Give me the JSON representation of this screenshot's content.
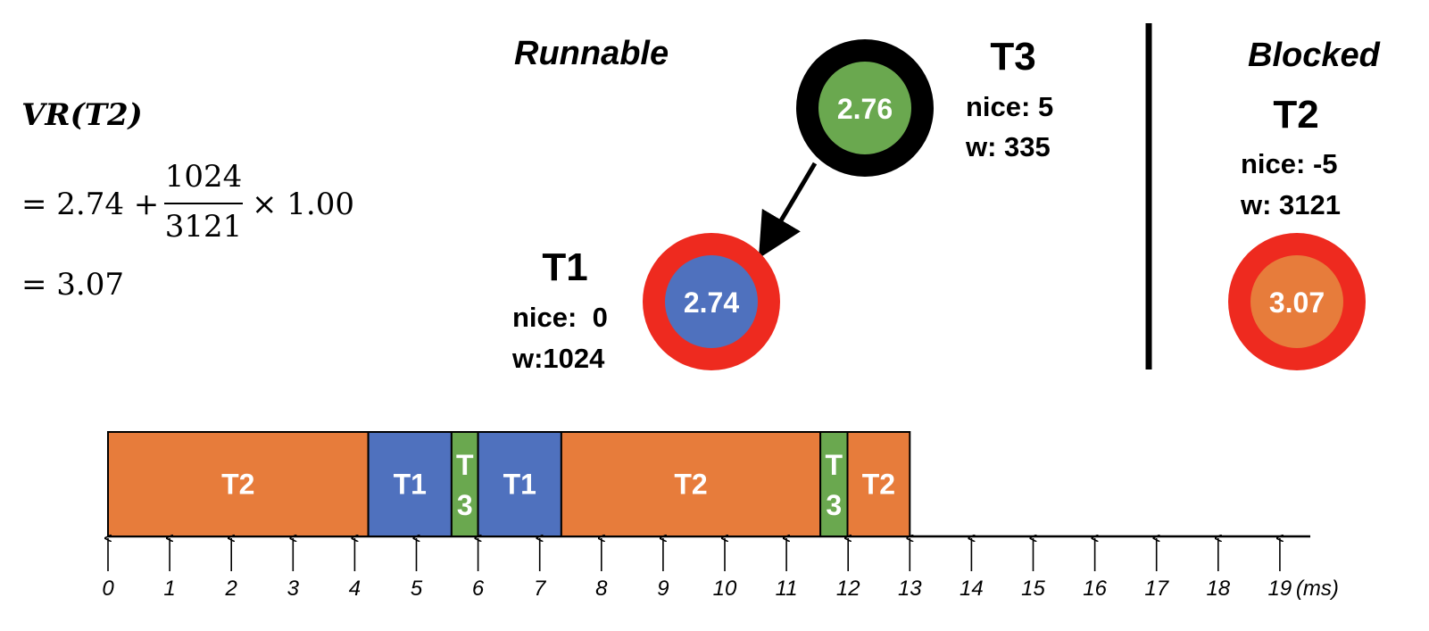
{
  "formula": {
    "lhs": "VR(T2)",
    "line2_prefix": "= 2.74 +",
    "numerator": "1024",
    "denominator": "3121",
    "line2_suffix": "× 1.00",
    "line3": "= 3.07"
  },
  "sections": {
    "runnable": "Runnable",
    "blocked": "Blocked"
  },
  "tasks": {
    "t3": {
      "name": "T3",
      "nice": "nice: 5",
      "weight": "w: 335",
      "vruntime": "2.76"
    },
    "t1": {
      "name": "T1",
      "nice": "nice:  0",
      "weight": "w:1024",
      "vruntime": "2.74"
    },
    "t2": {
      "name": "T2",
      "nice": "nice: -5",
      "weight": "w: 3121",
      "vruntime": "3.07"
    }
  },
  "colors": {
    "t1": "#4f71be",
    "t2": "#e77c3b",
    "t3": "#6aa84f",
    "red_ring": "#ee2a1f",
    "black_ring": "#000000"
  },
  "timeline": {
    "unit": "(ms)",
    "ticks": [
      "0",
      "1",
      "2",
      "3",
      "4",
      "5",
      "6",
      "7",
      "8",
      "9",
      "10",
      "11",
      "12",
      "13",
      "14",
      "15",
      "16",
      "17",
      "18",
      "19"
    ],
    "segments": [
      {
        "task": "t2",
        "label": "T2",
        "start": 0.0,
        "end": 4.22
      },
      {
        "task": "t1",
        "label": "T1",
        "start": 4.22,
        "end": 5.57
      },
      {
        "task": "t3",
        "label": "T3",
        "start": 5.57,
        "end": 6.0
      },
      {
        "task": "t1",
        "label": "T1",
        "start": 6.0,
        "end": 7.35
      },
      {
        "task": "t2",
        "label": "T2",
        "start": 7.35,
        "end": 11.55
      },
      {
        "task": "t3",
        "label": "T3",
        "start": 11.55,
        "end": 11.99
      },
      {
        "task": "t2",
        "label": "T2",
        "start": 11.99,
        "end": 13.0
      }
    ]
  }
}
